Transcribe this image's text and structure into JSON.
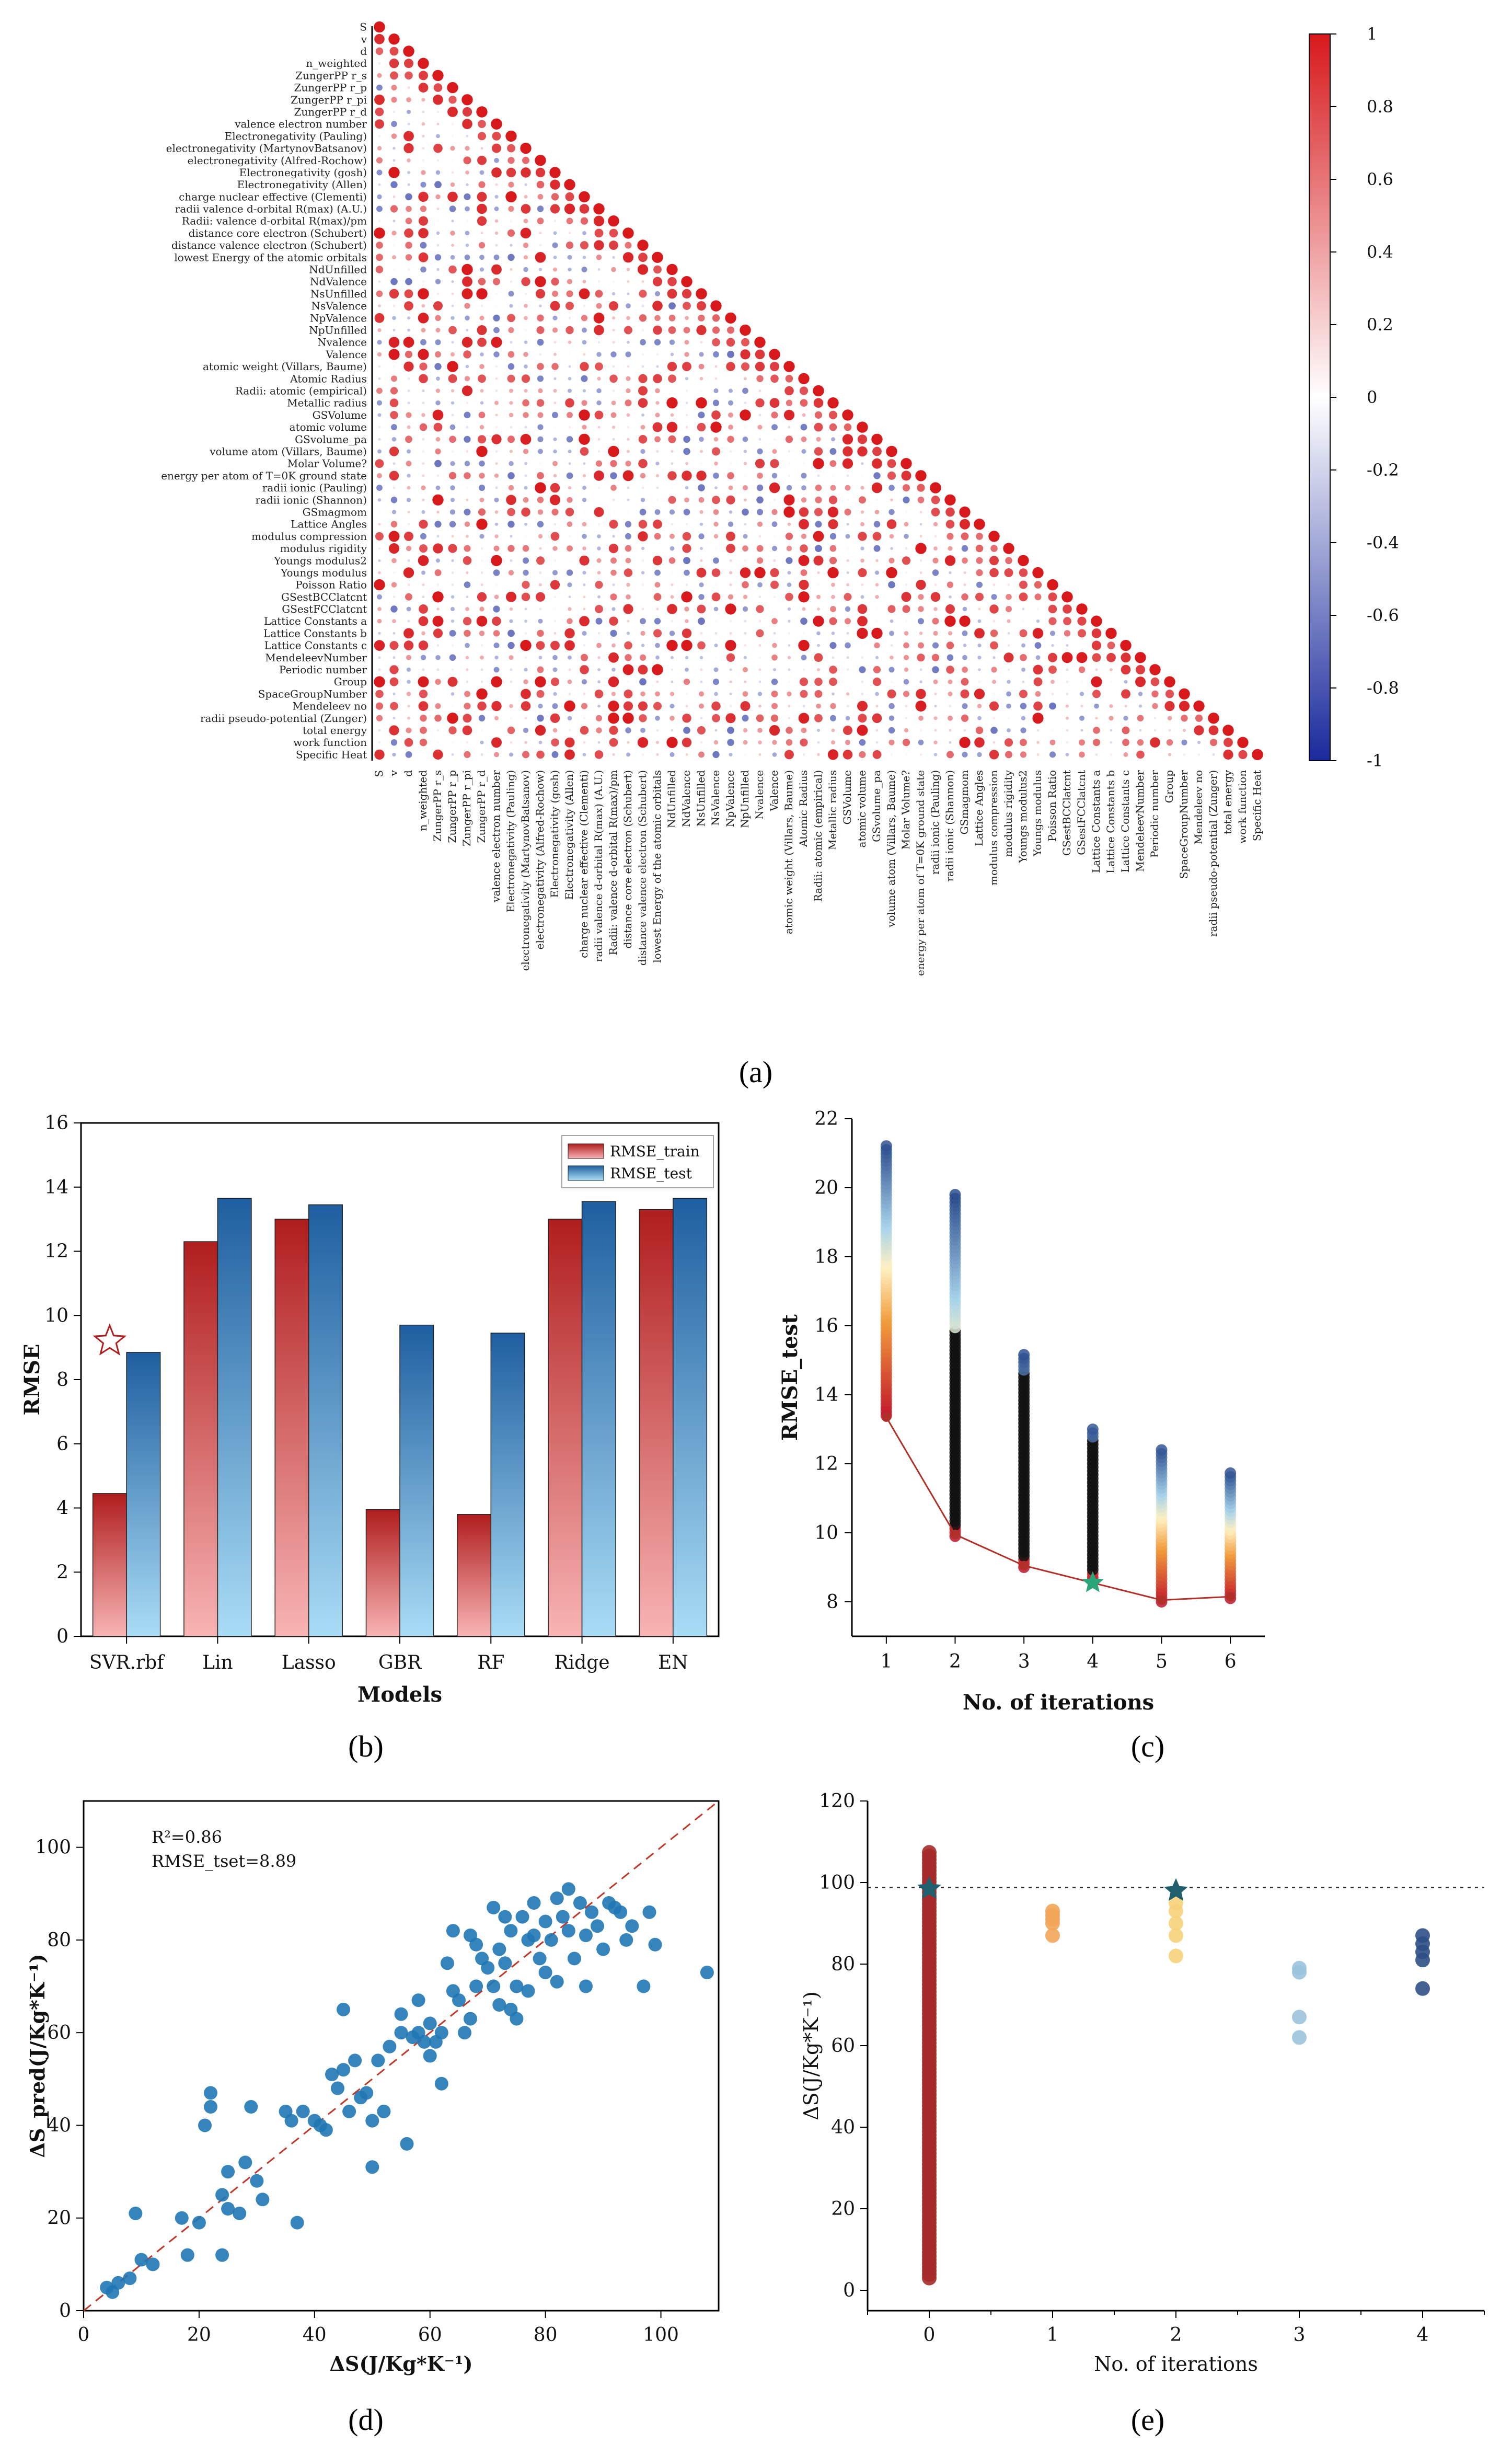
{
  "panels": {
    "a": "(a)",
    "b": "(b)",
    "c": "(c)",
    "d": "(d)",
    "e": "(e)"
  },
  "colors": {
    "red": "#c62828",
    "blue": "#1565c0",
    "darkred": "#b01e1e",
    "navy": "#1f3f6e",
    "scatter": "#1f77b4",
    "teal": "#1f5f6e",
    "green": "#2aa57a"
  },
  "chart_data": [
    {
      "id": "a",
      "type": "heatmap",
      "title": "",
      "features": [
        "S",
        "v",
        "d",
        "n_weighted",
        "ZungerPP r_s",
        "ZungerPP r_p",
        "ZungerPP r_pi",
        "ZungerPP r_d",
        "valence electron number",
        "Electronegativity (Pauling)",
        "electronegativity (MartynovBatsanov)",
        "electronegativity (Alfred-Rochow)",
        "Electronegativity (gosh)",
        "Electronegativity (Allen)",
        "charge nuclear effective (Clementi)",
        "radii valence d-orbital R(max) (A.U.)",
        "Radii: valence d-orbital R(max)/pm",
        "distance core electron (Schubert)",
        "distance valence electron (Schubert)",
        "lowest Energy of the atomic orbitals",
        "NdUnfilled",
        "NdValence",
        "NsUnfilled",
        "NsValence",
        "NpValence",
        "NpUnfilled",
        "Nvalence",
        "Valence",
        "atomic weight (Villars, Baume)",
        "Atomic Radius",
        "Radii: atomic (empirical)",
        "Metallic radius",
        "GSVolume",
        "atomic volume",
        "GSvolume_pa",
        "volume atom (Villars, Baume)",
        "Molar Volume?",
        "energy per atom of T=0K ground state",
        "radii ionic (Pauling)",
        "radii ionic (Shannon)",
        "GSmagmom",
        "Lattice Angles",
        "modulus compression",
        "modulus rigidity",
        "Youngs modulus2",
        "Youngs modulus",
        "Poisson Ratio",
        "GSestBCClatcnt",
        "GSestFCClatcnt",
        "Lattice Constants a",
        "Lattice Constants b",
        "Lattice Constants c",
        "MendeleevNumber",
        "Periodic number",
        "Group",
        "SpaceGroupNumber",
        "Mendeleev no",
        "radii pseudo-potential (Zunger)",
        "total energy",
        "work function",
        "Specific Heat"
      ],
      "colorbar": {
        "min": -1,
        "max": 1,
        "ticks": [
          "1",
          "0.8",
          "0.6",
          "0.4",
          "0.2",
          "0",
          "-0.2",
          "-0.4",
          "-0.6",
          "-0.8",
          "-1"
        ]
      },
      "values": "pearson correlation coefficients between features (lower triangle), shown as colored dots sized by magnitude"
    },
    {
      "id": "b",
      "type": "bar",
      "categories": [
        "SVR.rbf",
        "Lin",
        "Lasso",
        "GBR",
        "RF",
        "Ridge",
        "EN"
      ],
      "series": [
        {
          "name": "RMSE_train",
          "values": [
            4.45,
            12.3,
            13.0,
            3.95,
            3.8,
            13.0,
            13.3
          ]
        },
        {
          "name": "RMSE_test",
          "values": [
            8.85,
            13.65,
            13.45,
            9.7,
            9.45,
            13.55,
            13.65
          ]
        }
      ],
      "xlabel": "Models",
      "ylabel": "RMSE",
      "ylim": [
        0,
        16
      ],
      "yticks": [
        "0",
        "2",
        "4",
        "6",
        "8",
        "10",
        "12",
        "14",
        "16"
      ],
      "annotation": {
        "type": "star",
        "category": "SVR.rbf",
        "value": 9.2
      }
    },
    {
      "id": "c",
      "type": "scatter",
      "xlabel": "No. of iterations",
      "ylabel": "RMSE_test",
      "xlim": [
        0.5,
        6.5
      ],
      "ylim": [
        7,
        22
      ],
      "xticks": [
        "1",
        "2",
        "3",
        "4",
        "5",
        "6"
      ],
      "yticks": [
        "8",
        "10",
        "12",
        "14",
        "16",
        "18",
        "20",
        "22"
      ],
      "best_line": {
        "x": [
          1,
          2,
          3,
          4,
          5,
          6
        ],
        "y": [
          13.35,
          9.95,
          9.05,
          8.55,
          8.05,
          8.15
        ]
      },
      "best_marker": {
        "x": 4,
        "y": 8.55
      },
      "columns": [
        {
          "x": 1,
          "min": 13.4,
          "max": 21.3
        },
        {
          "x": 2,
          "min": 9.9,
          "max": 19.8
        },
        {
          "x": 3,
          "min": 9.0,
          "max": 15.2
        },
        {
          "x": 4,
          "min": 8.6,
          "max": 13.1
        },
        {
          "x": 5,
          "min": 8.0,
          "max": 12.5
        },
        {
          "x": 6,
          "min": 8.1,
          "max": 11.8
        }
      ]
    },
    {
      "id": "d",
      "type": "scatter",
      "xlabel": "ΔS(J/Kg*K⁻¹)",
      "ylabel": "ΔS_pred(J/Kg*K⁻¹)",
      "xlim": [
        0,
        110
      ],
      "ylim": [
        0,
        110
      ],
      "xticks": [
        "0",
        "20",
        "40",
        "60",
        "80",
        "100"
      ],
      "yticks": [
        "0",
        "20",
        "40",
        "60",
        "80",
        "100"
      ],
      "r2_label": "R²=0.86",
      "rmse_label": "RMSE_tset=8.89",
      "points": [
        [
          4,
          5
        ],
        [
          5,
          4
        ],
        [
          6,
          6
        ],
        [
          8,
          7
        ],
        [
          10,
          11
        ],
        [
          9,
          21
        ],
        [
          12,
          10
        ],
        [
          17,
          20
        ],
        [
          18,
          12
        ],
        [
          20,
          19
        ],
        [
          21,
          40
        ],
        [
          22,
          47
        ],
        [
          22,
          44
        ],
        [
          24,
          12
        ],
        [
          25,
          30
        ],
        [
          24,
          25
        ],
        [
          25,
          22
        ],
        [
          27,
          21
        ],
        [
          28,
          32
        ],
        [
          29,
          44
        ],
        [
          30,
          28
        ],
        [
          31,
          24
        ],
        [
          35,
          43
        ],
        [
          36,
          41
        ],
        [
          37,
          19
        ],
        [
          38,
          43
        ],
        [
          40,
          41
        ],
        [
          41,
          40
        ],
        [
          42,
          39
        ],
        [
          43,
          51
        ],
        [
          44,
          48
        ],
        [
          45,
          52
        ],
        [
          45,
          65
        ],
        [
          46,
          43
        ],
        [
          47,
          54
        ],
        [
          48,
          46
        ],
        [
          49,
          47
        ],
        [
          50,
          31
        ],
        [
          50,
          41
        ],
        [
          51,
          54
        ],
        [
          52,
          43
        ],
        [
          53,
          57
        ],
        [
          55,
          64
        ],
        [
          56,
          36
        ],
        [
          57,
          59
        ],
        [
          58,
          60
        ],
        [
          58,
          67
        ],
        [
          59,
          58
        ],
        [
          60,
          62
        ],
        [
          61,
          58
        ],
        [
          62,
          60
        ],
        [
          62,
          49
        ],
        [
          63,
          75
        ],
        [
          64,
          82
        ],
        [
          64,
          69
        ],
        [
          65,
          67
        ],
        [
          66,
          60
        ],
        [
          67,
          63
        ],
        [
          67,
          81
        ],
        [
          68,
          79
        ],
        [
          69,
          76
        ],
        [
          70,
          74
        ],
        [
          71,
          70
        ],
        [
          71,
          87
        ],
        [
          72,
          78
        ],
        [
          73,
          75
        ],
        [
          73,
          85
        ],
        [
          74,
          82
        ],
        [
          75,
          70
        ],
        [
          75,
          63
        ],
        [
          76,
          85
        ],
        [
          77,
          80
        ],
        [
          77,
          69
        ],
        [
          78,
          88
        ],
        [
          79,
          76
        ],
        [
          80,
          84
        ],
        [
          80,
          73
        ],
        [
          81,
          80
        ],
        [
          82,
          89
        ],
        [
          82,
          71
        ],
        [
          83,
          85
        ],
        [
          84,
          82
        ],
        [
          85,
          76
        ],
        [
          86,
          88
        ],
        [
          87,
          81
        ],
        [
          87,
          70
        ],
        [
          88,
          86
        ],
        [
          89,
          83
        ],
        [
          90,
          78
        ],
        [
          91,
          88
        ],
        [
          92,
          87
        ],
        [
          93,
          86
        ],
        [
          94,
          80
        ],
        [
          95,
          83
        ],
        [
          97,
          70
        ],
        [
          98,
          86
        ],
        [
          99,
          79
        ],
        [
          108,
          73
        ],
        [
          74,
          65
        ],
        [
          60,
          55
        ],
        [
          55,
          60
        ],
        [
          68,
          70
        ],
        [
          78,
          81
        ],
        [
          84,
          91
        ],
        [
          72,
          66
        ]
      ],
      "reference_line": "y = x"
    },
    {
      "id": "e",
      "type": "scatter",
      "xlabel": "No. of iterations",
      "ylabel": "ΔS(J/Kg*K⁻¹)",
      "xlim": [
        -0.5,
        4.5
      ],
      "ylim": [
        -5,
        120
      ],
      "xticks": [
        "0",
        "1",
        "2",
        "3",
        "4"
      ],
      "yticks": [
        "0",
        "20",
        "40",
        "60",
        "80",
        "100",
        "120"
      ],
      "threshold": 98.8,
      "columns": [
        {
          "x": 0,
          "min": 3,
          "max": 108
        },
        {
          "x": 1,
          "values": [
            87,
            90,
            92,
            93,
            91
          ]
        },
        {
          "x": 2,
          "values": [
            82,
            87,
            90,
            93,
            95
          ]
        },
        {
          "x": 3,
          "values": [
            62,
            67,
            78,
            79
          ]
        },
        {
          "x": 4,
          "values": [
            74,
            81,
            83,
            85,
            87
          ]
        }
      ],
      "stars": [
        {
          "x": 0,
          "y": 98.5
        },
        {
          "x": 2,
          "y": 98
        }
      ]
    }
  ]
}
